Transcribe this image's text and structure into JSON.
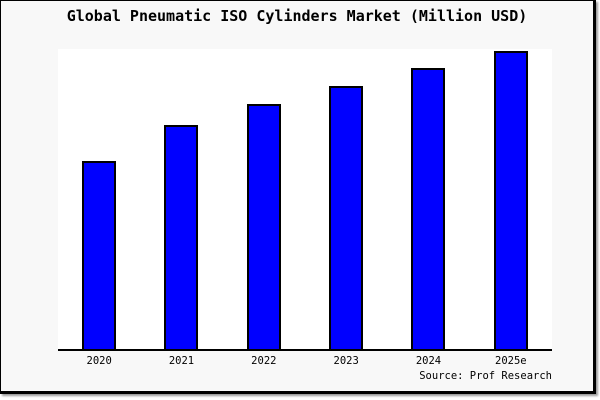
{
  "chart_data": {
    "type": "bar",
    "title": "Global Pneumatic ISO Cylinders Market (Million USD)",
    "categories": [
      "2020",
      "2021",
      "2022",
      "2023",
      "2024",
      "2025e"
    ],
    "values": [
      63,
      75,
      82,
      88,
      94,
      100
    ],
    "values_unit": "relative (no y-axis tick labels shown; 2025e bar = 100)",
    "xlabel": "",
    "ylabel": "",
    "ylim": [
      0,
      100.5
    ],
    "grid": false,
    "legend": false,
    "y_axis_visible": false,
    "source": "Source: Prof Research",
    "colors": {
      "bar_fill": "#0000ff",
      "bar_border": "#000000",
      "plot_bg": "#ffffff",
      "figure_bg": "#f8f8f8",
      "axis_line": "#000000",
      "text": "#000000"
    }
  }
}
